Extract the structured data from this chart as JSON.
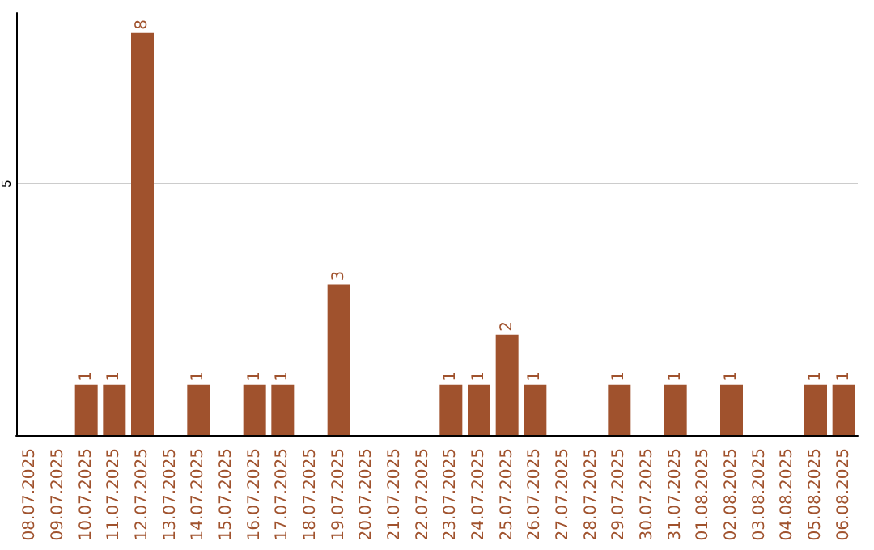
{
  "chart_data": {
    "type": "bar",
    "categories": [
      "08.07.2025",
      "09.07.2025",
      "10.07.2025",
      "11.07.2025",
      "12.07.2025",
      "13.07.2025",
      "14.07.2025",
      "15.07.2025",
      "16.07.2025",
      "17.07.2025",
      "18.07.2025",
      "19.07.2025",
      "20.07.2025",
      "21.07.2025",
      "22.07.2025",
      "23.07.2025",
      "24.07.2025",
      "25.07.2025",
      "26.07.2025",
      "27.07.2025",
      "28.07.2025",
      "29.07.2025",
      "30.07.2025",
      "31.07.2025",
      "01.08.2025",
      "02.08.2025",
      "03.08.2025",
      "04.08.2025",
      "05.08.2025",
      "06.08.2025"
    ],
    "values": [
      0,
      0,
      1,
      1,
      8,
      0,
      1,
      0,
      1,
      1,
      0,
      3,
      0,
      0,
      0,
      1,
      1,
      2,
      1,
      0,
      0,
      1,
      0,
      1,
      0,
      1,
      0,
      0,
      1,
      1
    ],
    "value_labels": [
      null,
      null,
      "1",
      "1",
      "8",
      null,
      "1",
      null,
      "1",
      "1",
      null,
      "3",
      null,
      null,
      null,
      "1",
      "1",
      "2",
      "1",
      null,
      null,
      "1",
      null,
      "1",
      null,
      "1",
      null,
      null,
      "1",
      "1"
    ],
    "color": "#a0522d",
    "ylim": [
      0,
      8.4
    ],
    "yticks": [
      5
    ],
    "grid": "y"
  }
}
